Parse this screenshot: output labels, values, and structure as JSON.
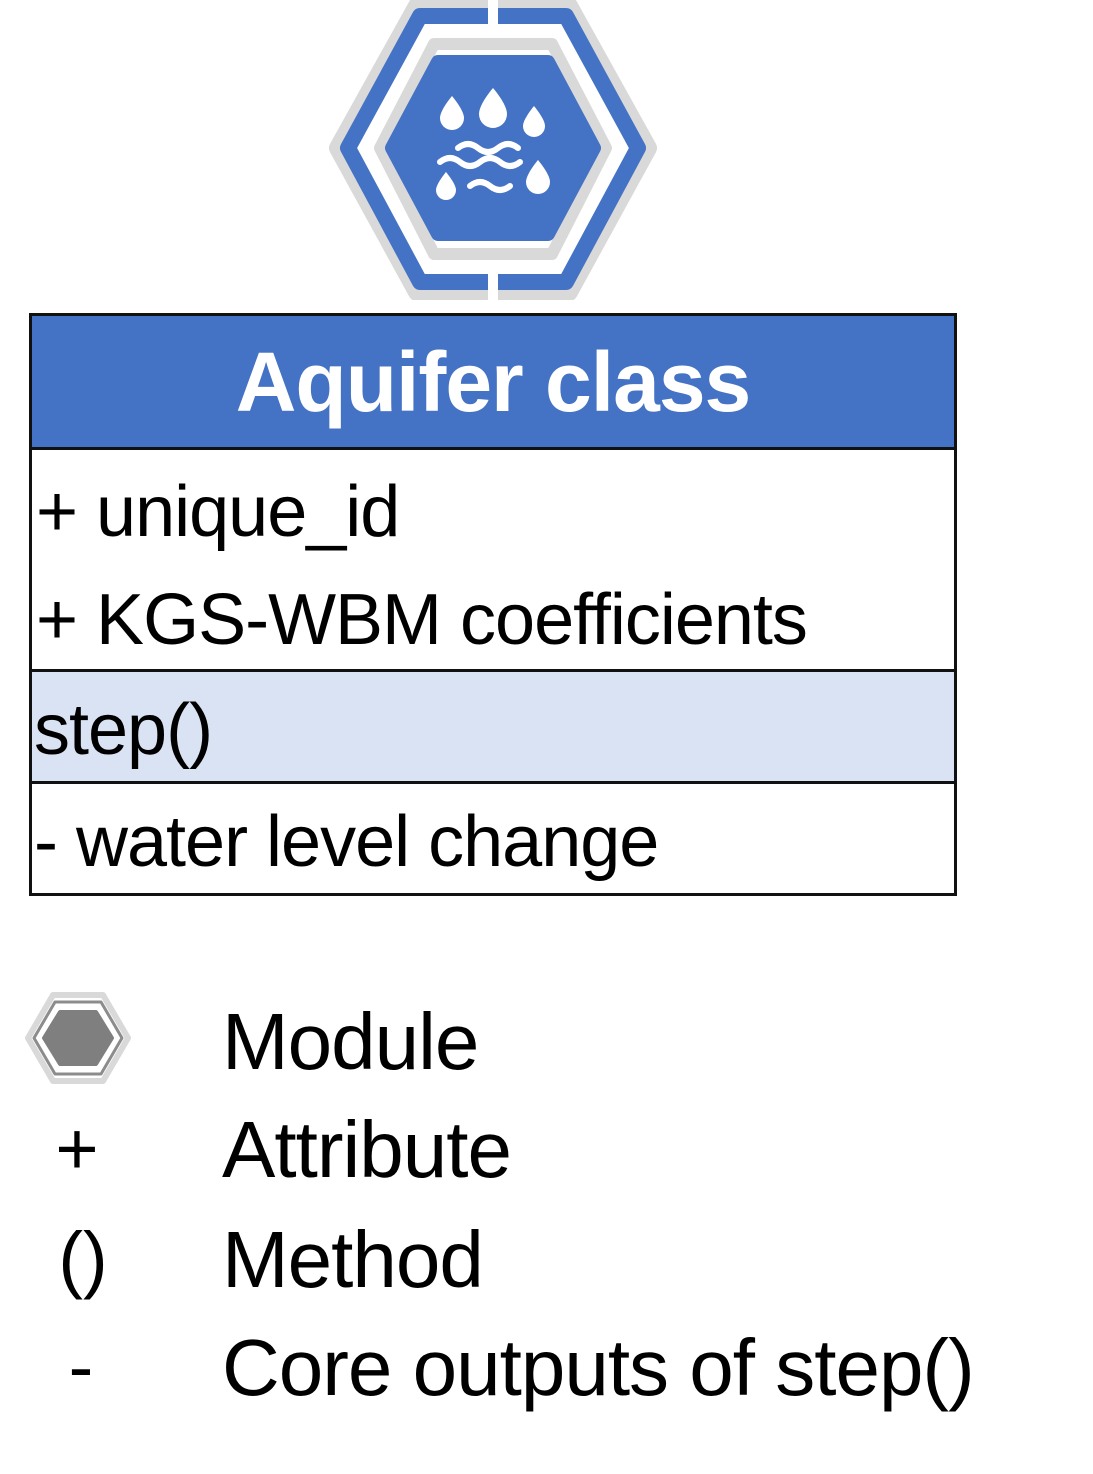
{
  "module_icon": {
    "icon": "water-drops-waves-icon",
    "ring_color": "#4472c4",
    "outline_color": "#d9d9d9",
    "hex_fill": "#4472c4",
    "glyph_color": "#ffffff"
  },
  "uml_class": {
    "title": "Aquifer class",
    "header_color": "#4472c4",
    "attributes": [
      "+ unique_id",
      "+ KGS-WBM coefficients"
    ],
    "method": "step()",
    "method_bg": "#dae3f3",
    "output": "-  water level change"
  },
  "legend": [
    {
      "symbol": "",
      "symbol_icon": "gray-hexagon-icon",
      "label": "Module"
    },
    {
      "symbol": "+",
      "label": "Attribute"
    },
    {
      "symbol": "()",
      "label": "Method"
    },
    {
      "symbol": "-",
      "label": "Core outputs of step()"
    }
  ]
}
